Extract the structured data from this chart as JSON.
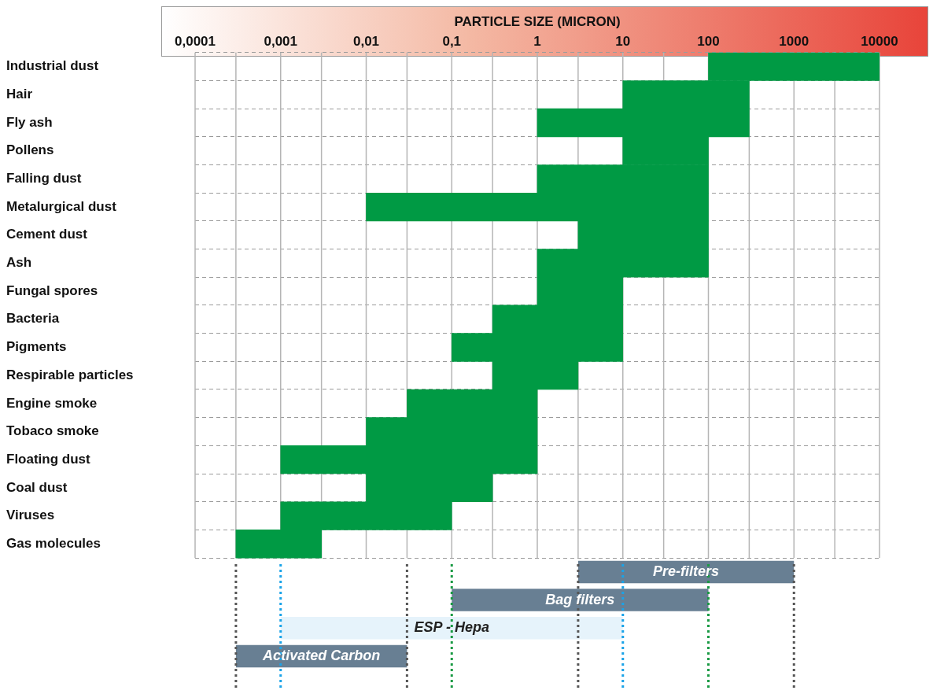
{
  "chart_data": {
    "type": "bar",
    "orientation": "horizontal",
    "xlabel": "PARTICLE SIZE (MICRON)",
    "log": "x",
    "grid": true,
    "categories": [
      "Industrial dust",
      "Hair",
      "Fly ash",
      "Pollens",
      "Falling dust",
      "Metalurgical dust",
      "Cement dust",
      "Ash",
      "Fungal spores",
      "Bacteria",
      "Pigments",
      "Respirable particles",
      "Engine smoke",
      "Tobaco smoke",
      "Floating dust",
      "Coal dust",
      "Viruses",
      "Gas molecules",
      null,
      null,
      null,
      null
    ],
    "series": [
      {
        "color": "#009a44",
        "base": [
          100,
          10,
          1,
          10,
          1,
          0.01,
          3,
          1,
          1,
          0.3,
          0.1,
          0.3,
          0.03,
          0.01,
          0.001,
          0.01,
          0.001,
          0.0003,
          null,
          null,
          null,
          null
        ],
        "values": [
          9900,
          290,
          299,
          90,
          99,
          99.99,
          97,
          99,
          9,
          9.7,
          9.9,
          2.7,
          0.97,
          0.99,
          0.999,
          0.29,
          0.099,
          0.0027,
          null,
          null,
          null,
          null
        ]
      },
      {
        "colors": [
          null,
          null,
          null,
          null,
          null,
          null,
          null,
          null,
          null,
          null,
          null,
          null,
          null,
          null,
          null,
          null,
          null,
          null,
          "#687f93",
          "#687f93",
          "#e6f3fb",
          "#687f93"
        ],
        "base": [
          null,
          null,
          null,
          null,
          null,
          null,
          null,
          null,
          null,
          null,
          null,
          null,
          null,
          null,
          null,
          null,
          null,
          null,
          3,
          0.1,
          0.001,
          0.0003
        ],
        "values": [
          null,
          null,
          null,
          null,
          null,
          null,
          null,
          null,
          null,
          null,
          null,
          null,
          null,
          null,
          null,
          null,
          null,
          null,
          997,
          99.9,
          9.999,
          0.0297
        ],
        "value_labels": [
          null,
          null,
          null,
          null,
          null,
          null,
          null,
          null,
          null,
          null,
          null,
          null,
          null,
          null,
          null,
          null,
          null,
          null,
          "Pre-filters",
          "Bag filters",
          "ESP - Hepa",
          "Activated Carbon"
        ]
      }
    ],
    "xlim": [
      0.0001,
      10000
    ],
    "xticks": [
      {
        "value": 0.0001,
        "label": "0,0001"
      },
      {
        "value": 0.0003,
        "label": null
      },
      {
        "value": 0.001,
        "label": "0,001"
      },
      {
        "value": 0.003,
        "label": null
      },
      {
        "value": 0.01,
        "label": "0,01"
      },
      {
        "value": 0.03,
        "label": null
      },
      {
        "value": 0.1,
        "label": "0,1"
      },
      {
        "value": 0.3,
        "label": null
      },
      1,
      {
        "value": 3,
        "label": null
      },
      10,
      {
        "value": 30,
        "label": null
      },
      100,
      {
        "value": 300,
        "label": null
      },
      1000,
      {
        "value": 3000,
        "label": null
      },
      10000
    ],
    "ref_lines": [
      {
        "axis": "x",
        "value": 0.0003,
        "color": "#555555",
        "line_style": "dotted"
      },
      {
        "axis": "x",
        "value": 0.03,
        "color": "#555555",
        "line_style": "dotted"
      },
      {
        "axis": "x",
        "value": 0.001,
        "color": "#1aa3e8",
        "line_style": "dotted"
      },
      {
        "axis": "x",
        "value": 10,
        "color": "#1aa3e8",
        "line_style": "dotted"
      },
      {
        "axis": "x",
        "value": 0.1,
        "color": "#1a9a44",
        "line_style": "dotted"
      },
      {
        "axis": "x",
        "value": 100,
        "color": "#1a9a44",
        "line_style": "dotted"
      },
      {
        "axis": "x",
        "value": 3,
        "color": "#555555",
        "line_style": "dotted"
      },
      {
        "axis": "x",
        "value": 1000,
        "color": "#555555",
        "line_style": "dotted"
      }
    ]
  }
}
